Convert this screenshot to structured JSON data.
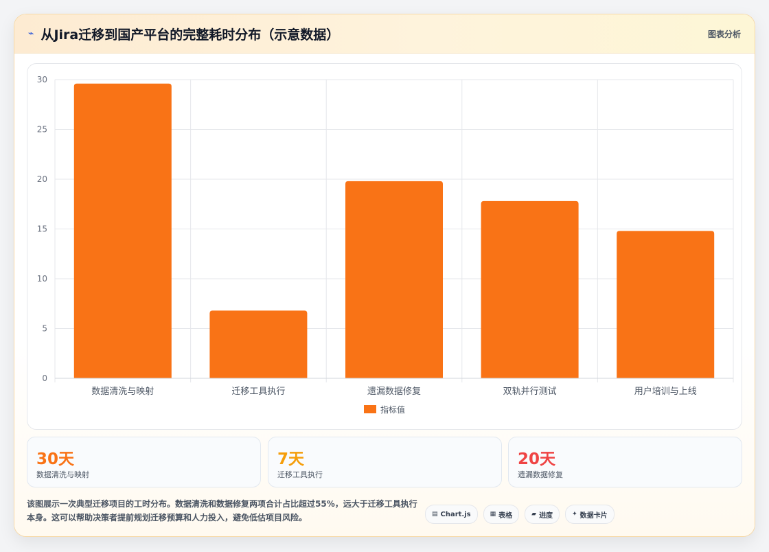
{
  "header": {
    "icon": "lightning-icon",
    "title": "从Jira迁移到国产平台的完整耗时分布（示意数据）",
    "action_label": "图表分析"
  },
  "chart_data": {
    "type": "bar",
    "title": "",
    "xlabel": "",
    "ylabel": "",
    "categories": [
      "数据清洗与映射",
      "迁移工具执行",
      "遗漏数据修复",
      "双轨并行测试",
      "用户培训与上线"
    ],
    "series": [
      {
        "name": "指标值",
        "values": [
          29.6,
          6.8,
          19.8,
          17.8,
          14.8
        ],
        "color": "#f97316"
      }
    ],
    "y_ticks": [
      "0",
      "5",
      "10",
      "15",
      "20",
      "25",
      "30"
    ],
    "ylim": [
      0,
      30
    ],
    "grid": true,
    "legend": "bottom"
  },
  "stats": [
    {
      "value": "30天",
      "label": "数据清洗与映射",
      "color": "#f97316"
    },
    {
      "value": "7天",
      "label": "迁移工具执行",
      "color": "#f59e0b"
    },
    {
      "value": "20天",
      "label": "遗漏数据修复",
      "color": "#ef4444"
    }
  ],
  "footer": {
    "description": "该图展示一次典型迁移项目的工时分布。数据清洗和数据修复两项合计占比超过55%，远大于迁移工具执行本身。这可以帮助决策者提前规划迁移预算和人力投入，避免低估项目风险。"
  },
  "chips": [
    {
      "icon": "▤",
      "icon_name": "chart-icon",
      "label": "Chart.js"
    },
    {
      "icon": "▦",
      "icon_name": "table-icon",
      "label": "表格"
    },
    {
      "icon": "▰",
      "icon_name": "progress-icon",
      "label": "进度"
    },
    {
      "icon": "✦",
      "icon_name": "sparkle-icon",
      "label": "数据卡片"
    }
  ]
}
